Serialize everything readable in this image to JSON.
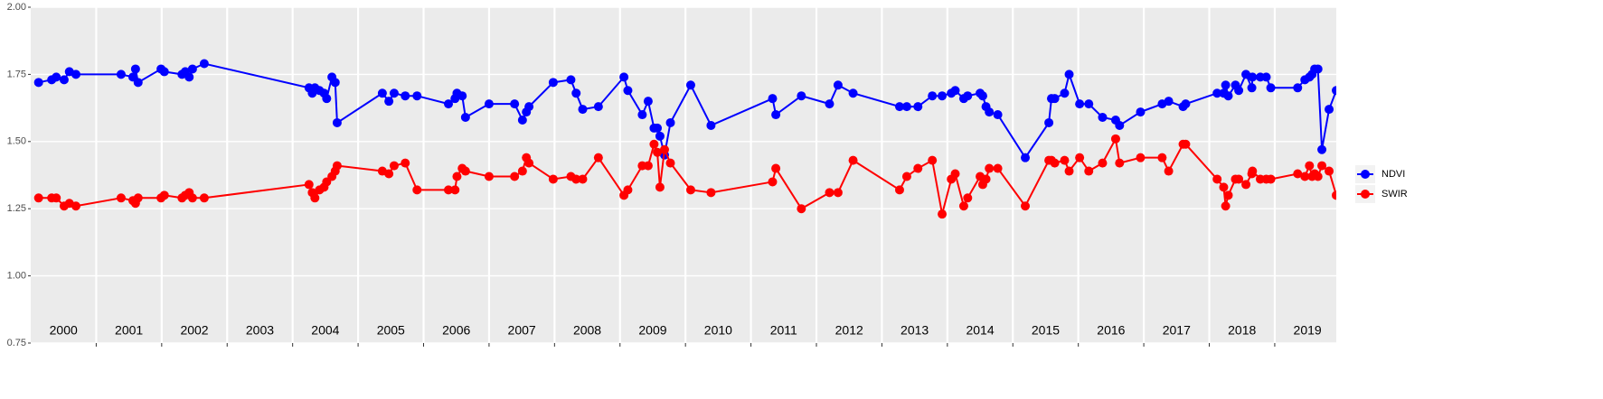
{
  "chart_data": {
    "type": "line",
    "x": [
      2000.12,
      2000.32,
      2000.39,
      2000.51,
      2000.59,
      2000.69,
      2001.38,
      2001.56,
      2001.6,
      2001.64,
      2001.99,
      2002.04,
      2002.31,
      2002.36,
      2002.42,
      2002.47,
      2002.65,
      2004.25,
      2004.3,
      2004.34,
      2004.41,
      2004.48,
      2004.52,
      2004.6,
      2004.65,
      2004.68,
      2005.37,
      2005.47,
      2005.55,
      2005.72,
      2005.9,
      2006.38,
      2006.48,
      2006.51,
      2006.59,
      2006.64,
      2007.0,
      2007.39,
      2007.51,
      2007.57,
      2007.61,
      2007.98,
      2008.25,
      2008.33,
      2008.43,
      2008.67,
      2009.06,
      2009.12,
      2009.34,
      2009.43,
      2009.52,
      2009.57,
      2009.61,
      2009.68,
      2009.77,
      2010.08,
      2010.39,
      2011.33,
      2011.38,
      2011.77,
      2012.2,
      2012.33,
      2012.56,
      2013.27,
      2013.38,
      2013.55,
      2013.77,
      2013.92,
      2014.06,
      2014.12,
      2014.25,
      2014.31,
      2014.5,
      2014.54,
      2014.59,
      2014.64,
      2014.77,
      2015.19,
      2015.55,
      2015.59,
      2015.64,
      2015.79,
      2015.86,
      2016.02,
      2016.16,
      2016.37,
      2016.57,
      2016.63,
      2016.95,
      2017.28,
      2017.38,
      2017.6,
      2017.64,
      2018.12,
      2018.22,
      2018.25,
      2018.29,
      2018.4,
      2018.45,
      2018.56,
      2018.65,
      2018.66,
      2018.78,
      2018.87,
      2018.94,
      2019.35,
      2019.46,
      2019.53,
      2019.57,
      2019.61,
      2019.66,
      2019.72,
      2019.83,
      2019.94
    ],
    "series": [
      {
        "name": "NDVI",
        "color": "#0000ff",
        "values": [
          1.72,
          1.73,
          1.74,
          1.73,
          1.76,
          1.75,
          1.75,
          1.74,
          1.77,
          1.72,
          1.77,
          1.76,
          1.75,
          1.76,
          1.74,
          1.77,
          1.79,
          1.7,
          1.68,
          1.7,
          1.69,
          1.68,
          1.66,
          1.74,
          1.72,
          1.57,
          1.68,
          1.65,
          1.68,
          1.67,
          1.67,
          1.64,
          1.66,
          1.68,
          1.67,
          1.59,
          1.64,
          1.64,
          1.58,
          1.61,
          1.63,
          1.72,
          1.73,
          1.68,
          1.62,
          1.63,
          1.74,
          1.69,
          1.6,
          1.65,
          1.55,
          1.55,
          1.52,
          1.45,
          1.57,
          1.71,
          1.56,
          1.66,
          1.6,
          1.67,
          1.64,
          1.71,
          1.68,
          1.63,
          1.63,
          1.63,
          1.67,
          1.67,
          1.68,
          1.69,
          1.66,
          1.67,
          1.68,
          1.67,
          1.63,
          1.61,
          1.6,
          1.44,
          1.57,
          1.66,
          1.66,
          1.68,
          1.75,
          1.64,
          1.64,
          1.59,
          1.58,
          1.56,
          1.61,
          1.64,
          1.65,
          1.63,
          1.64,
          1.68,
          1.68,
          1.71,
          1.67,
          1.71,
          1.69,
          1.75,
          1.7,
          1.74,
          1.74,
          1.74,
          1.7,
          1.7,
          1.73,
          1.74,
          1.75,
          1.77,
          1.77,
          1.47,
          1.62,
          1.69
        ]
      },
      {
        "name": "SWIR",
        "color": "#ff0000",
        "values": [
          1.29,
          1.29,
          1.29,
          1.26,
          1.27,
          1.26,
          1.29,
          1.28,
          1.27,
          1.29,
          1.29,
          1.3,
          1.29,
          1.3,
          1.31,
          1.29,
          1.29,
          1.34,
          1.31,
          1.29,
          1.32,
          1.33,
          1.35,
          1.37,
          1.39,
          1.41,
          1.39,
          1.38,
          1.41,
          1.42,
          1.32,
          1.32,
          1.32,
          1.37,
          1.4,
          1.39,
          1.37,
          1.37,
          1.39,
          1.44,
          1.42,
          1.36,
          1.37,
          1.36,
          1.36,
          1.44,
          1.3,
          1.32,
          1.41,
          1.41,
          1.49,
          1.46,
          1.33,
          1.47,
          1.42,
          1.32,
          1.31,
          1.35,
          1.4,
          1.25,
          1.31,
          1.31,
          1.43,
          1.32,
          1.37,
          1.4,
          1.43,
          1.23,
          1.36,
          1.38,
          1.26,
          1.29,
          1.37,
          1.34,
          1.36,
          1.4,
          1.4,
          1.26,
          1.43,
          1.43,
          1.42,
          1.43,
          1.39,
          1.44,
          1.39,
          1.42,
          1.51,
          1.42,
          1.44,
          1.44,
          1.39,
          1.49,
          1.49,
          1.36,
          1.33,
          1.26,
          1.3,
          1.36,
          1.36,
          1.34,
          1.38,
          1.39,
          1.36,
          1.36,
          1.36,
          1.38,
          1.37,
          1.41,
          1.37,
          1.38,
          1.37,
          1.41,
          1.39,
          1.3
        ]
      }
    ],
    "xlim": [
      2000,
      2019.94
    ],
    "xticks": [
      {
        "value": 2000.5,
        "label": "2000"
      },
      {
        "value": 2001.5,
        "label": "2001"
      },
      {
        "value": 2002.5,
        "label": "2002"
      },
      {
        "value": 2003.5,
        "label": "2003"
      },
      {
        "value": 2004.5,
        "label": "2004"
      },
      {
        "value": 2005.5,
        "label": "2005"
      },
      {
        "value": 2006.5,
        "label": "2006"
      },
      {
        "value": 2007.5,
        "label": "2007"
      },
      {
        "value": 2008.5,
        "label": "2008"
      },
      {
        "value": 2009.5,
        "label": "2009"
      },
      {
        "value": 2010.5,
        "label": "2010"
      },
      {
        "value": 2011.5,
        "label": "2011"
      },
      {
        "value": 2012.5,
        "label": "2012"
      },
      {
        "value": 2013.5,
        "label": "2013"
      },
      {
        "value": 2014.5,
        "label": "2014"
      },
      {
        "value": 2015.5,
        "label": "2015"
      },
      {
        "value": 2016.5,
        "label": "2016"
      },
      {
        "value": 2017.5,
        "label": "2017"
      },
      {
        "value": 2018.5,
        "label": "2018"
      },
      {
        "value": 2019.5,
        "label": "2019"
      }
    ],
    "xgrid": [
      2001,
      2002,
      2003,
      2004,
      2005,
      2006,
      2007,
      2008,
      2009,
      2010,
      2011,
      2012,
      2013,
      2014,
      2015,
      2016,
      2017,
      2018,
      2019
    ],
    "ylim": [
      0.75,
      2.0
    ],
    "yticks": [
      {
        "value": 0.75,
        "label": "0.75"
      },
      {
        "value": 1.0,
        "label": "1.00"
      },
      {
        "value": 1.25,
        "label": "1.25"
      },
      {
        "value": 1.5,
        "label": "1.50"
      },
      {
        "value": 1.75,
        "label": "1.75"
      },
      {
        "value": 2.0,
        "label": "2.00"
      }
    ],
    "grid": true,
    "legend": "right"
  }
}
